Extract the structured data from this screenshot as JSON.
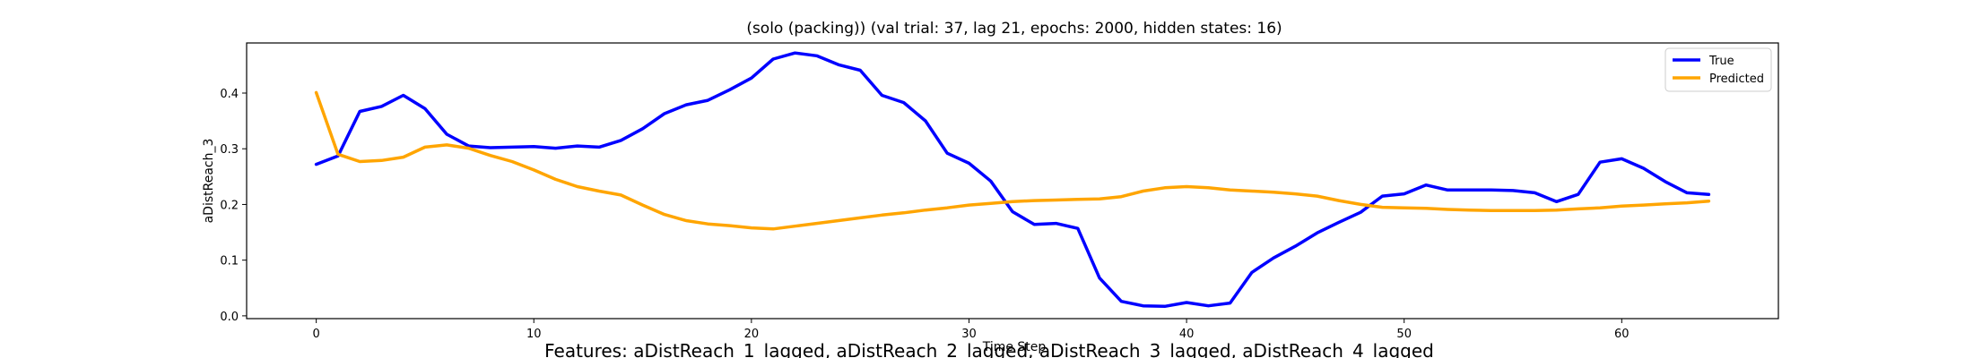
{
  "chart_data": {
    "type": "line",
    "title": "(solo (packing)) (val trial: 37, lag 21, epochs: 2000, hidden states: 16)",
    "xlabel": "Time Step",
    "ylabel": "aDistReach_3",
    "footer": "Features: aDistReach_1_lagged, aDistReach_2_lagged, aDistReach_3_lagged, aDistReach_4_lagged",
    "xlim": [
      -3.2,
      67.2
    ],
    "ylim": [
      -0.005,
      0.49
    ],
    "xticks": [
      0,
      10,
      20,
      30,
      40,
      50,
      60
    ],
    "yticks": [
      0.0,
      0.1,
      0.2,
      0.3,
      0.4
    ],
    "xtick_labels": [
      "0",
      "10",
      "20",
      "30",
      "40",
      "50",
      "60"
    ],
    "ytick_labels": [
      "0.0",
      "0.1",
      "0.2",
      "0.3",
      "0.4"
    ],
    "grid": false,
    "legend_position": "top-right",
    "x": [
      0,
      1,
      2,
      3,
      4,
      5,
      6,
      7,
      8,
      9,
      10,
      11,
      12,
      13,
      14,
      15,
      16,
      17,
      18,
      19,
      20,
      21,
      22,
      23,
      24,
      25,
      26,
      27,
      28,
      29,
      30,
      31,
      32,
      33,
      34,
      35,
      36,
      37,
      38,
      39,
      40,
      41,
      42,
      43,
      44,
      45,
      46,
      47,
      48,
      49,
      50,
      51,
      52,
      53,
      54,
      55,
      56,
      57,
      58,
      59,
      60,
      61,
      62,
      63,
      64
    ],
    "series": [
      {
        "name": "True",
        "color": "#0000ff",
        "values": [
          0.272,
          0.287,
          0.367,
          0.376,
          0.396,
          0.372,
          0.326,
          0.305,
          0.302,
          0.303,
          0.304,
          0.301,
          0.305,
          0.303,
          0.315,
          0.336,
          0.363,
          0.379,
          0.387,
          0.406,
          0.427,
          0.461,
          0.472,
          0.467,
          0.451,
          0.441,
          0.396,
          0.383,
          0.35,
          0.292,
          0.274,
          0.242,
          0.187,
          0.164,
          0.166,
          0.157,
          0.068,
          0.026,
          0.018,
          0.017,
          0.024,
          0.018,
          0.023,
          0.078,
          0.104,
          0.125,
          0.149,
          0.168,
          0.186,
          0.215,
          0.219,
          0.235,
          0.226,
          0.226,
          0.226,
          0.225,
          0.221,
          0.205,
          0.218,
          0.276,
          0.282,
          0.265,
          0.241,
          0.221,
          0.218
        ]
      },
      {
        "name": "Predicted",
        "color": "#ffa500",
        "values": [
          0.401,
          0.29,
          0.277,
          0.279,
          0.285,
          0.303,
          0.307,
          0.301,
          0.288,
          0.277,
          0.262,
          0.245,
          0.232,
          0.224,
          0.217,
          0.199,
          0.182,
          0.171,
          0.165,
          0.162,
          0.158,
          0.156,
          0.161,
          0.166,
          0.171,
          0.176,
          0.181,
          0.185,
          0.19,
          0.194,
          0.199,
          0.202,
          0.205,
          0.207,
          0.208,
          0.209,
          0.21,
          0.214,
          0.224,
          0.23,
          0.232,
          0.23,
          0.226,
          0.224,
          0.222,
          0.219,
          0.215,
          0.207,
          0.2,
          0.195,
          0.194,
          0.193,
          0.191,
          0.19,
          0.189,
          0.189,
          0.189,
          0.19,
          0.192,
          0.194,
          0.197,
          0.199,
          0.201,
          0.203,
          0.206
        ]
      }
    ]
  }
}
